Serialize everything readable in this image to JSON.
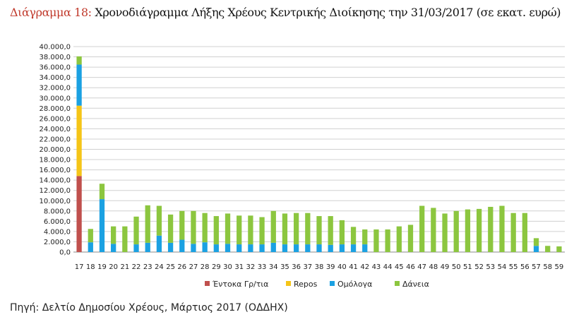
{
  "header": {
    "figure_label": "Διάγραμμα 18:",
    "title_text": "Χρονοδιάγραμμα Λήξης Χρέους Κεντρικής Διοίκησης την 31/03/2017 (σε εκατ. ευρώ)"
  },
  "footer": {
    "source": "Πηγή: Δελτίο Δημοσίου Χρέους, Μάρτιος 2017 (ΟΔΔΗΧ)"
  },
  "colors": {
    "entoka": "#c0504d",
    "repos": "#f5c518",
    "omologa": "#1ba1e2",
    "daneia": "#8cc63f",
    "grid": "#d0d0d0"
  },
  "chart_data": {
    "type": "bar",
    "stacked": true,
    "title": "Χρονοδιάγραμμα Λήξης Χρέους Κεντρικής Διοίκησης την 31/03/2017 (σε εκατ. ευρώ)",
    "xlabel": "",
    "ylabel": "",
    "ylim": [
      0,
      40000
    ],
    "yticks": [
      "0,0",
      "2.000,0",
      "4.000,0",
      "6.000,0",
      "8.000,0",
      "10.000,0",
      "12.000,0",
      "14.000,0",
      "16.000,0",
      "18.000,0",
      "20.000,0",
      "22.000,0",
      "24.000,0",
      "26.000,0",
      "28.000,0",
      "30.000,0",
      "32.000,0",
      "34.000,0",
      "36.000,0",
      "38.000,0",
      "40.000,0"
    ],
    "grid": true,
    "legend_position": "bottom",
    "categories": [
      "17",
      "18",
      "19",
      "20",
      "21",
      "22",
      "23",
      "24",
      "25",
      "26",
      "27",
      "28",
      "29",
      "30",
      "31",
      "32",
      "33",
      "34",
      "35",
      "36",
      "37",
      "38",
      "39",
      "40",
      "41",
      "42",
      "43",
      "44",
      "45",
      "46",
      "47",
      "48",
      "49",
      "50",
      "51",
      "52",
      "53",
      "54",
      "55",
      "56",
      "57",
      "58",
      "59"
    ],
    "series": [
      {
        "name": "Έντοκα Γρ/τια",
        "color": "#c0504d",
        "values": [
          14800,
          0,
          0,
          0,
          0,
          0,
          0,
          0,
          0,
          0,
          0,
          0,
          0,
          0,
          0,
          0,
          0,
          0,
          0,
          0,
          0,
          0,
          0,
          0,
          0,
          0,
          0,
          0,
          0,
          0,
          0,
          0,
          0,
          0,
          0,
          0,
          0,
          0,
          0,
          0,
          0,
          0,
          0
        ]
      },
      {
        "name": "Repos",
        "color": "#f5c518",
        "values": [
          13700,
          0,
          0,
          0,
          0,
          0,
          0,
          0,
          0,
          0,
          0,
          0,
          0,
          0,
          0,
          0,
          0,
          0,
          0,
          0,
          0,
          0,
          0,
          0,
          0,
          0,
          0,
          0,
          0,
          0,
          0,
          0,
          0,
          0,
          0,
          0,
          0,
          0,
          0,
          0,
          0,
          0,
          0
        ]
      },
      {
        "name": "Ομόλογα",
        "color": "#1ba1e2",
        "values": [
          8000,
          1900,
          10300,
          1600,
          0,
          1500,
          1800,
          3200,
          1800,
          2400,
          1600,
          1900,
          1500,
          1600,
          1500,
          1500,
          1500,
          1800,
          1500,
          1500,
          1500,
          1500,
          1400,
          1500,
          1500,
          1500,
          0,
          0,
          0,
          0,
          0,
          0,
          0,
          0,
          0,
          0,
          0,
          0,
          0,
          0,
          1200,
          0,
          0
        ]
      },
      {
        "name": "Δάνεια",
        "color": "#8cc63f",
        "values": [
          1600,
          2600,
          3000,
          3400,
          5000,
          5400,
          7300,
          5800,
          5500,
          5600,
          6400,
          5700,
          5500,
          5900,
          5600,
          5600,
          5300,
          6200,
          6000,
          6100,
          6100,
          5500,
          5600,
          4700,
          3400,
          2900,
          4400,
          4400,
          5000,
          5300,
          9000,
          8600,
          7500,
          8000,
          8300,
          8400,
          8800,
          9000,
          7600,
          7600,
          1500,
          1200,
          1100
        ]
      }
    ]
  }
}
